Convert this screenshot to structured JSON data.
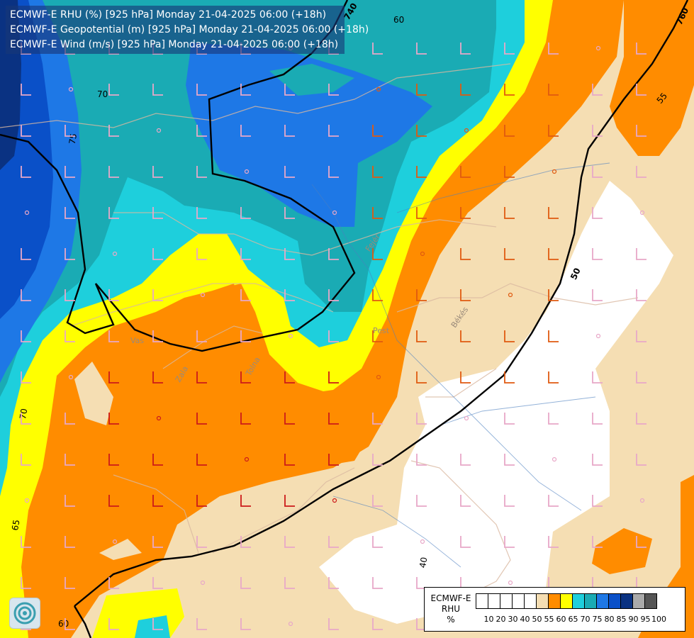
{
  "header": {
    "line1": "ECMWF-E RHU (%) [925 hPa] Monday 21-04-2025 06:00 (+18h)",
    "line2": "ECMWF-E Geopotential (m) [925 hPa] Monday 21-04-2025 06:00 (+18h)",
    "line3": "ECMWF-E Wind (m/s) [925 hPa] Monday 21-04-2025 06:00 (+18h)"
  },
  "contour_labels": {
    "rh_70_top": "70",
    "rh_75": "75",
    "rh_60_top": "60",
    "rh_70_left": "70",
    "rh_65": "65",
    "rh_60_bottom": "60",
    "rh_55": "55",
    "rh_40": "40",
    "geo_740": "740",
    "geo_760": "760",
    "geo_750": "50"
  },
  "place_labels": {
    "bekes": "Békés",
    "pest": "Pest",
    "vas": "Vas",
    "tolna": "Tolna",
    "zala": "Zala",
    "fejer": "Fejér"
  },
  "legend": {
    "title_line1": "ECMWF-E",
    "title_line2": "RHU",
    "title_line3": "%",
    "colors": [
      "#ffffff",
      "#ffffff",
      "#ffffff",
      "#ffffff",
      "#ffffff",
      "#f5deb3",
      "#ff8c00",
      "#ffff00",
      "#1ecfdc",
      "#1aabb4",
      "#1e78e6",
      "#0a50c8",
      "#0a3282",
      "#aaaaaa",
      "#555555"
    ],
    "ticks": [
      "10",
      "20",
      "30",
      "40",
      "50",
      "55",
      "60",
      "65",
      "70",
      "75",
      "80",
      "85",
      "90",
      "95",
      "100"
    ]
  }
}
